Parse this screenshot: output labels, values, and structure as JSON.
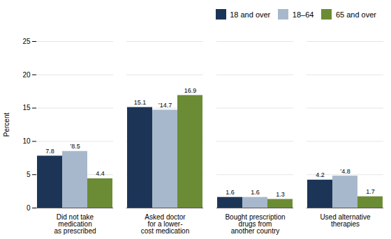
{
  "chart_data": {
    "type": "bar",
    "categories": [
      "Did not take\nmedication\nas prescribed",
      "Asked doctor\nfor a lower-\ncost medication",
      "Bought prescription\ndrugs from\nanother country",
      "Used alternative\ntherapies"
    ],
    "series": [
      {
        "name": "18 and over",
        "color": "#1c3557",
        "values": [
          7.8,
          15.1,
          1.6,
          4.2
        ],
        "value_labels": [
          "7.8",
          "15.1",
          "1.6",
          "4.2"
        ]
      },
      {
        "name": "18–64",
        "color": "#a8b8cc",
        "values": [
          8.5,
          14.7,
          1.6,
          4.8
        ],
        "value_labels": [
          "’8.5",
          "’14.7",
          "1.6",
          "’4.8"
        ]
      },
      {
        "name": "65 and over",
        "color": "#6b8c35",
        "values": [
          4.4,
          16.9,
          1.3,
          1.7
        ],
        "value_labels": [
          "4.4",
          "16.9",
          "1.3",
          "1.7"
        ]
      }
    ],
    "ylabel": "Percent",
    "ylim": [
      0,
      25
    ],
    "yticks": [
      0,
      5,
      10,
      15,
      20,
      25
    ],
    "grid": true,
    "legend": "upper right",
    "data_labels": true
  }
}
